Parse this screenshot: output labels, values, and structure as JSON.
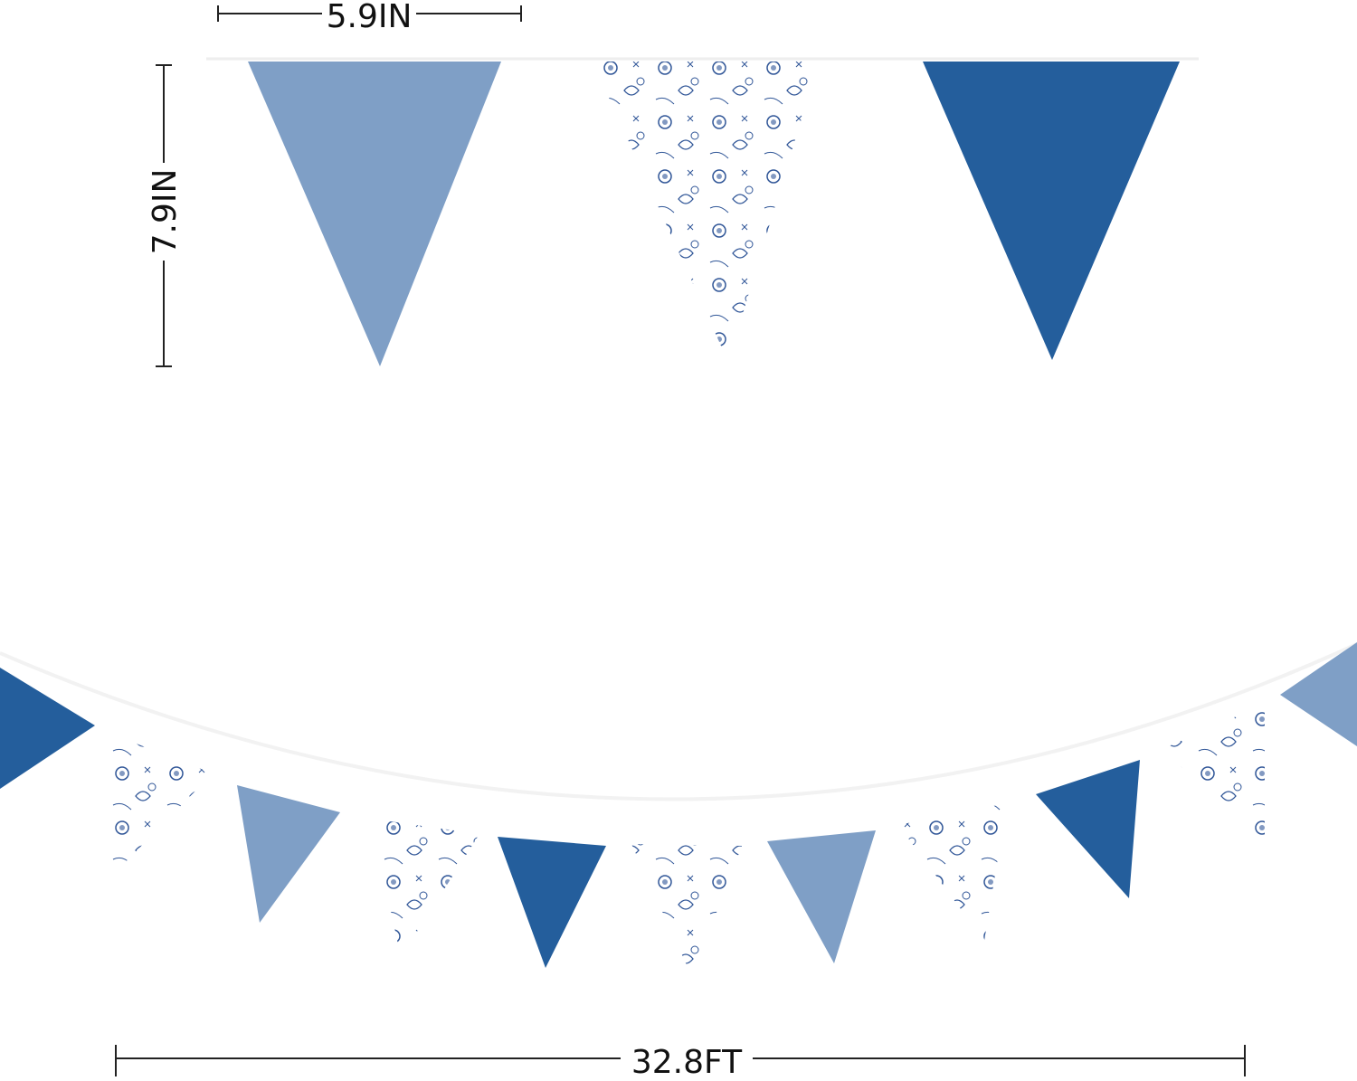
{
  "dimensions": {
    "flag_width_label": "5.9IN",
    "flag_height_label": "7.9IN",
    "total_length_label": "32.8FT"
  },
  "colors": {
    "light_blue": "#7f9fc6",
    "dark_blue": "#245e9c",
    "floral_ink": "#2f5597",
    "floral_bg": "#ffffff",
    "ruler": "#222222"
  },
  "top_flags": [
    "light_blue",
    "floral",
    "dark_blue"
  ],
  "bottom_flags": [
    "dark_blue",
    "floral",
    "light_blue",
    "floral",
    "dark_blue",
    "floral",
    "light_blue",
    "floral",
    "dark_blue",
    "floral",
    "light_blue"
  ]
}
